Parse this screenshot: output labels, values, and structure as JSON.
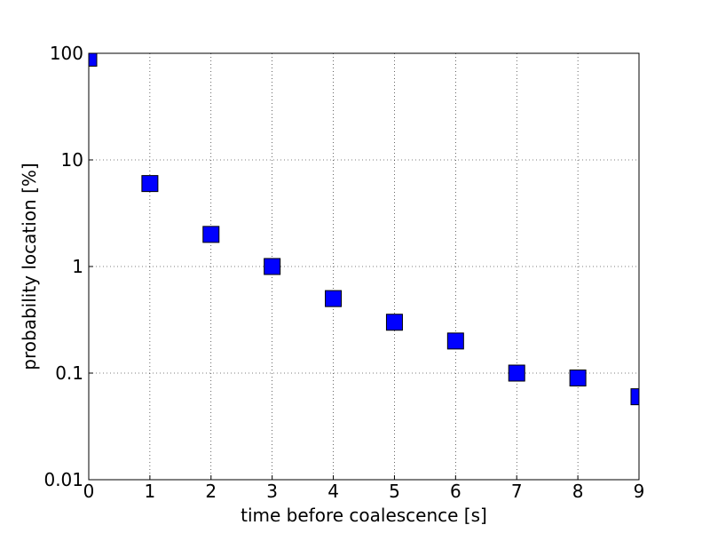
{
  "chart_data": {
    "type": "scatter",
    "x_label": "time before coalescence [s]",
    "y_label": "probability location [%]",
    "series": [
      {
        "color": "#0000ff",
        "x": [
          0,
          1,
          2,
          3,
          4,
          5,
          6,
          7,
          8,
          9
        ],
        "values": [
          90,
          6,
          2,
          1,
          0.5,
          0.3,
          0.2,
          0.1,
          0.09,
          0.06
        ]
      }
    ],
    "xlim": [
      0,
      9
    ],
    "xticks": [
      0,
      1,
      2,
      3,
      4,
      5,
      6,
      7,
      8,
      9
    ],
    "ylim": [
      0.01,
      100
    ],
    "yticks": [
      0.01,
      0.1,
      1,
      10,
      100
    ],
    "y_scale": "log",
    "grid": true
  }
}
